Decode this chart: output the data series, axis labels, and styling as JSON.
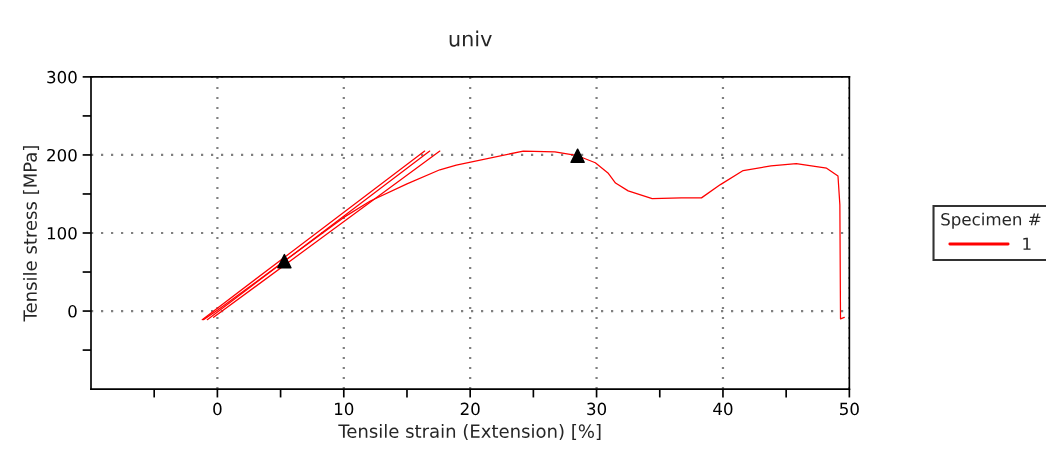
{
  "chart_data": {
    "type": "line",
    "title": "univ",
    "xlabel": "Tensile strain (Extension) [%]",
    "ylabel": "Tensile stress [MPa]",
    "legend_title": "Specimen #",
    "xlim": [
      -10,
      50
    ],
    "ylim": [
      -100,
      300
    ],
    "xticks": [
      {
        "value": -5,
        "label": null
      },
      0,
      {
        "value": 5,
        "label": null
      },
      10,
      {
        "value": 15,
        "label": null
      },
      20,
      {
        "value": 25,
        "label": null
      },
      30,
      {
        "value": 35,
        "label": null
      },
      40,
      {
        "value": 45,
        "label": null
      },
      50
    ],
    "yticks": [
      {
        "value": -50,
        "label": null
      },
      0,
      {
        "value": 50,
        "label": null
      },
      100,
      {
        "value": 150,
        "label": null
      },
      200,
      {
        "value": 250,
        "label": null
      },
      300
    ],
    "grid": true,
    "legend": "right",
    "line_style": "solid",
    "series": [
      {
        "name": "1",
        "color": "#ff0000",
        "x": [
          -1.1,
          0,
          5.3,
          10,
          12.1,
          15,
          17.6,
          18.9,
          24.2,
          26.7,
          28.5,
          29.9,
          30.9,
          31.5,
          32.5,
          34.4,
          36.7,
          38.3,
          39.8,
          41.6,
          43.8,
          45.8,
          48.2,
          49.1,
          49.25,
          49.3,
          49.6
        ],
        "values": [
          -11,
          1,
          64,
          120,
          141,
          163,
          181,
          187,
          205,
          204,
          199,
          190,
          177,
          164,
          154,
          144,
          145,
          145,
          162,
          180,
          186,
          189,
          183,
          173,
          136,
          -10,
          -8
        ]
      },
      {
        "color": "#ff0000",
        "x": [
          -1.2,
          16.4
        ],
        "values": [
          -11,
          205
        ]
      },
      {
        "color": "#ff0000",
        "x": [
          -0.8,
          16.8
        ],
        "values": [
          -11,
          205
        ]
      },
      {
        "color": "#ff0000",
        "x": [
          -0.3,
          17.6
        ],
        "values": [
          -8,
          205
        ]
      },
      {
        "type": "scatter",
        "color": "#000000",
        "marker": "triangle",
        "x": [
          5.3,
          28.5
        ],
        "values": [
          64,
          199
        ]
      }
    ]
  }
}
